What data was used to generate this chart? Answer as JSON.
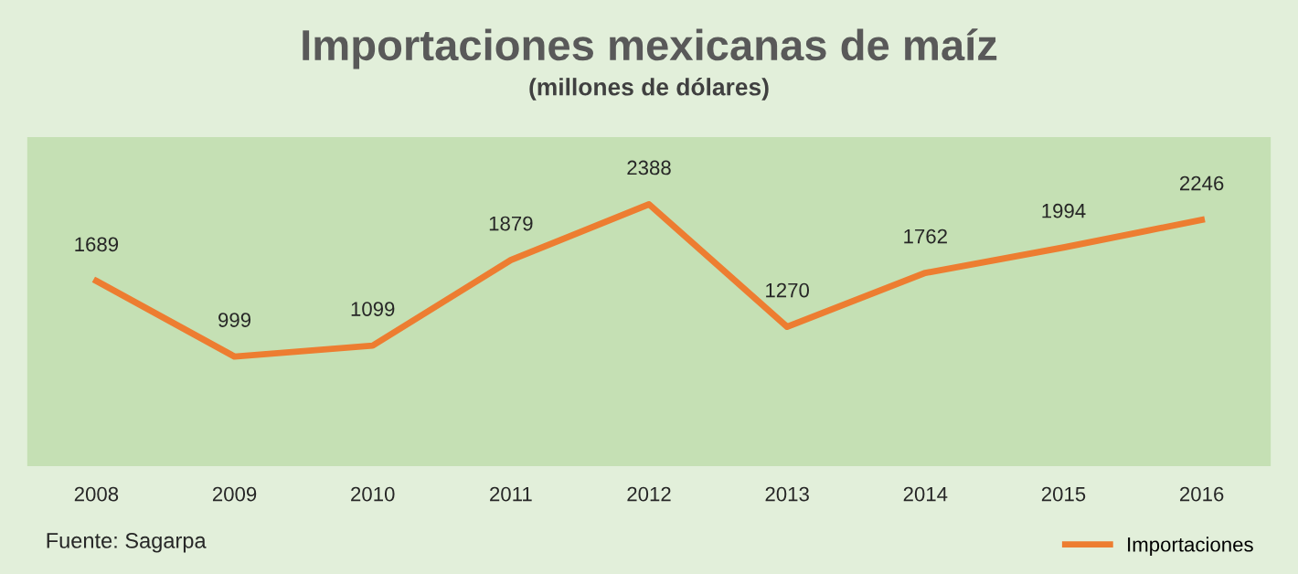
{
  "chart_data": {
    "type": "line",
    "title": "Importaciones mexicanas de maíz",
    "subtitle": "(millones de dólares)",
    "categories": [
      "2008",
      "2009",
      "2010",
      "2011",
      "2012",
      "2013",
      "2014",
      "2015",
      "2016"
    ],
    "series": [
      {
        "name": "Importaciones",
        "color": "#ed7d31",
        "values": [
          1689,
          999,
          1099,
          1879,
          2388,
          1270,
          1762,
          1994,
          2246
        ]
      }
    ],
    "ylim": [
      0,
      3000
    ],
    "tick_labels": "x",
    "data_labels": true,
    "grid": false,
    "legend": "bottom right",
    "marker": "none",
    "line_style": "solid",
    "annotations": [
      "Fuente: Sagarpa"
    ]
  }
}
